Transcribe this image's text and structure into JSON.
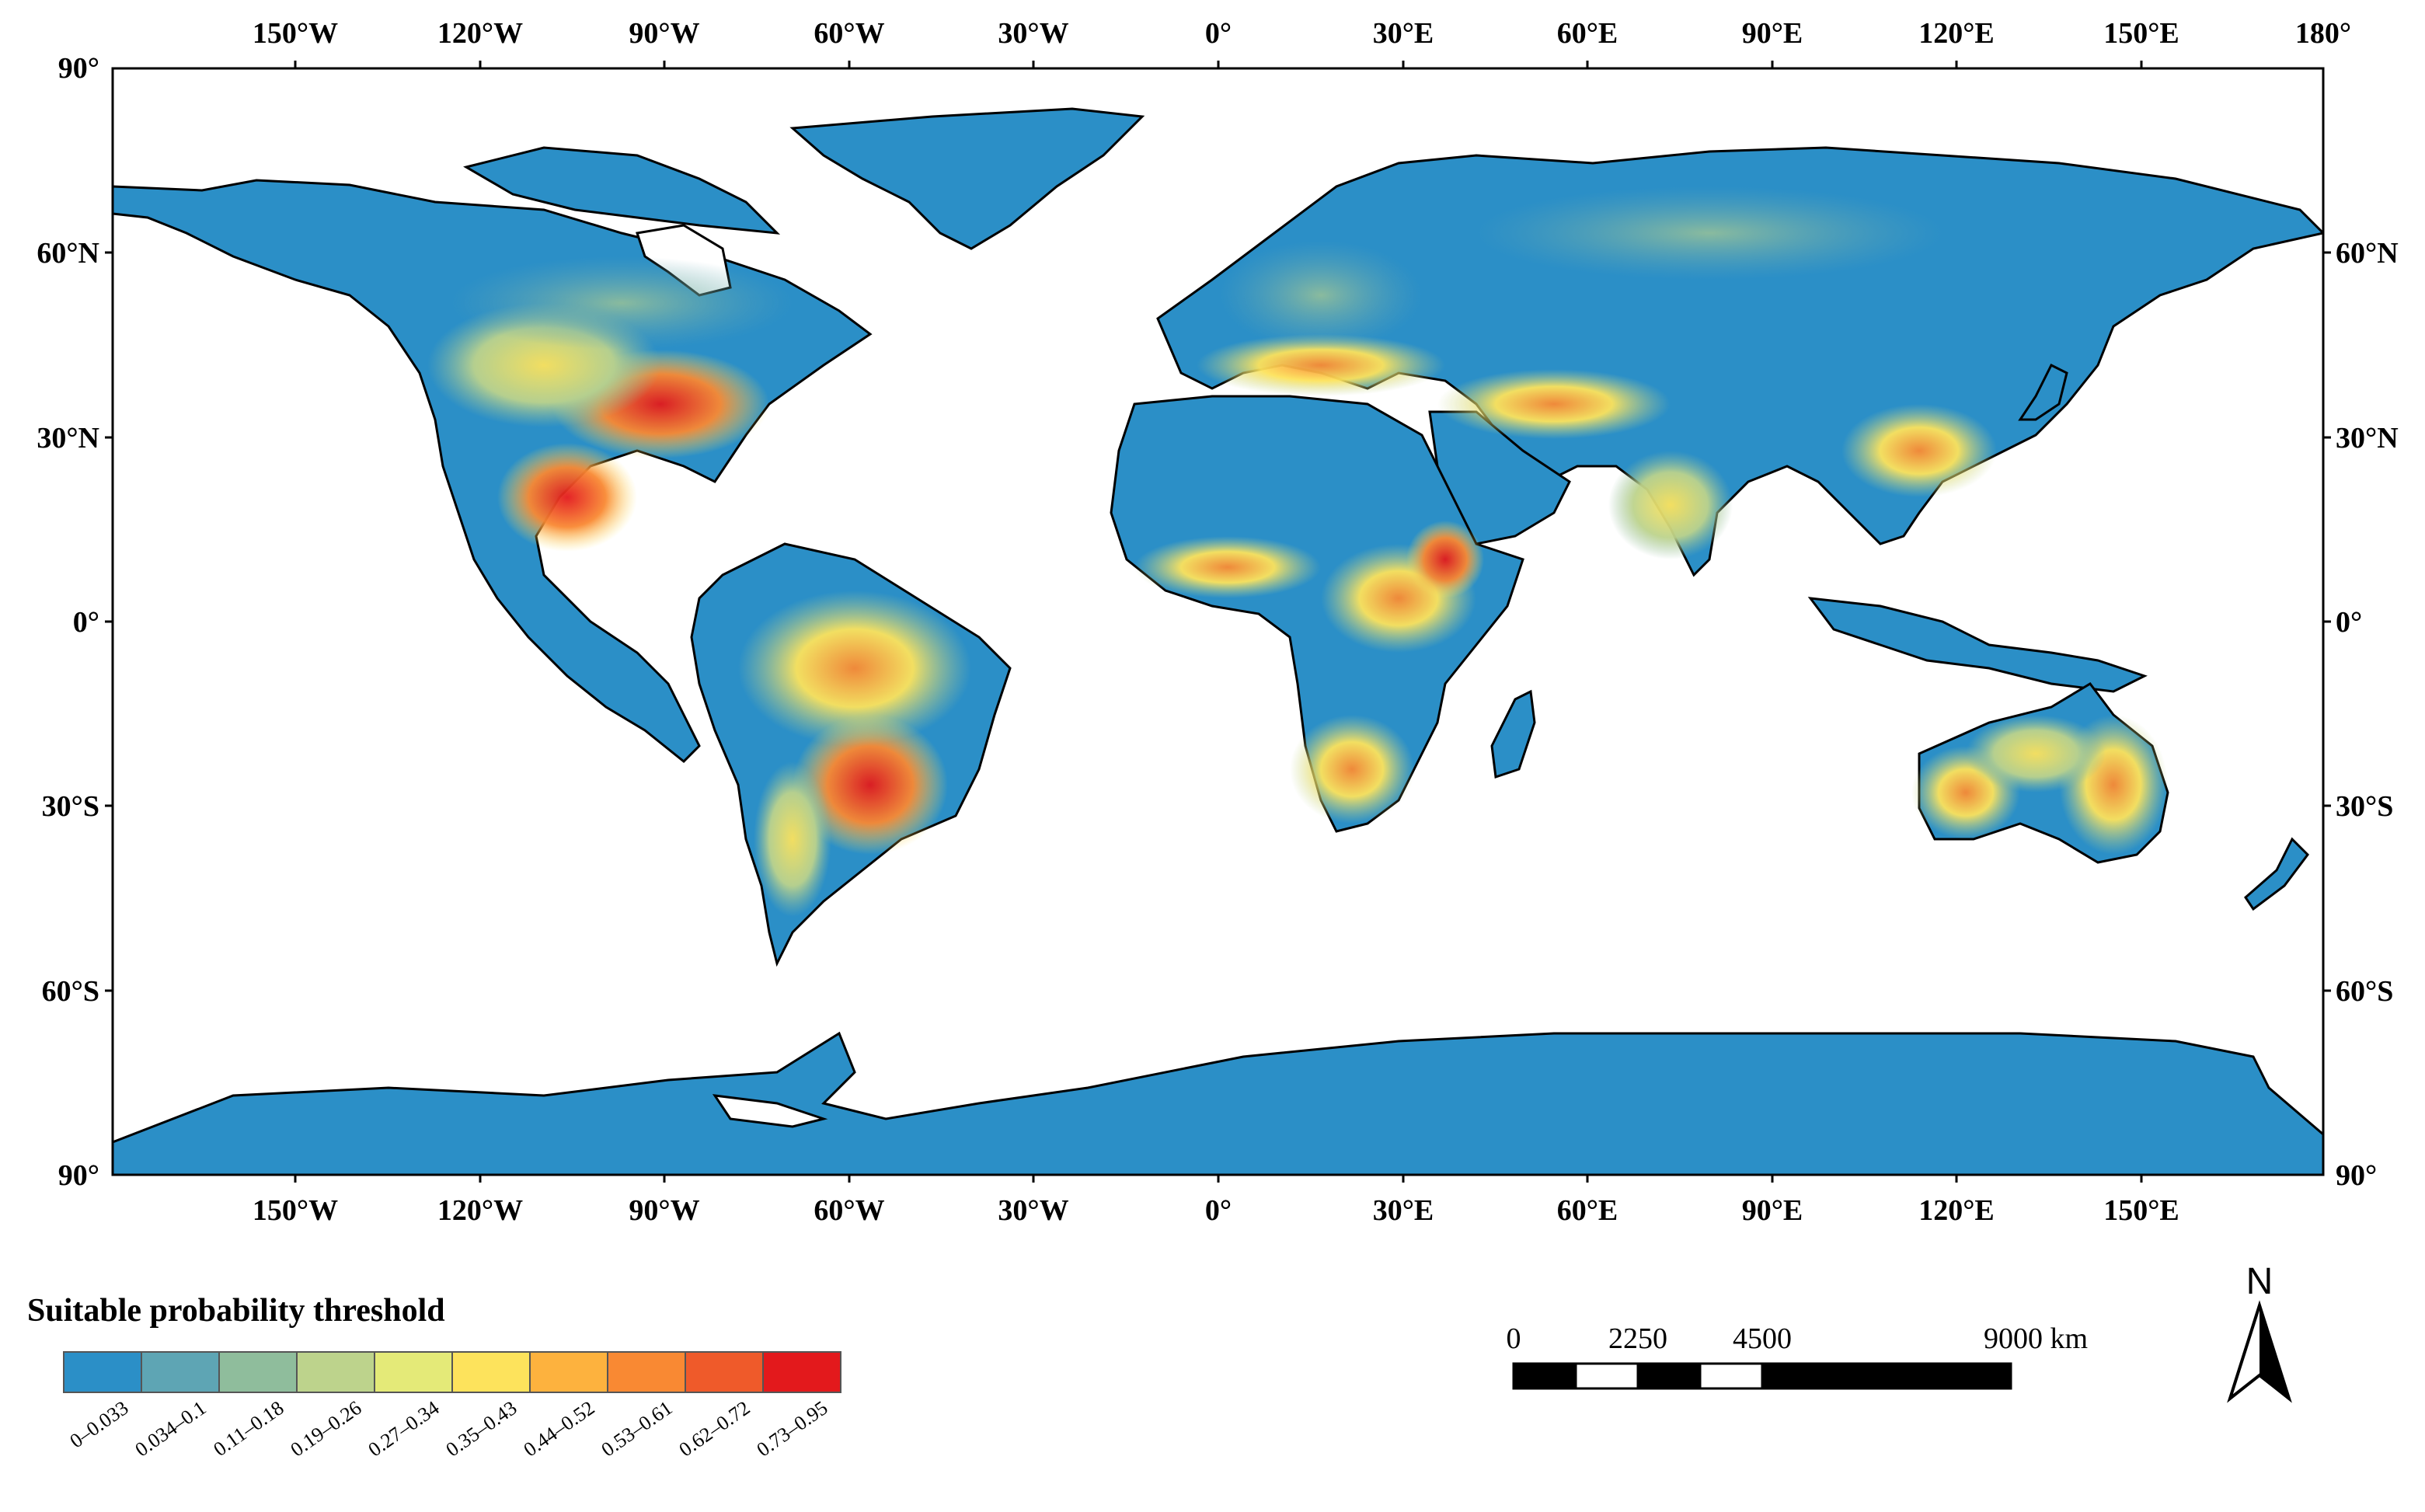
{
  "map": {
    "graticule": {
      "top_longitudes": [
        "150°W",
        "120°W",
        "90°W",
        "60°W",
        "30°W",
        "0°",
        "30°E",
        "60°E",
        "90°E",
        "120°E",
        "150°E",
        "180°"
      ],
      "bottom_longitudes": [
        "150°W",
        "120°W",
        "90°W",
        "60°W",
        "30°W",
        "0°",
        "30°E",
        "60°E",
        "90°E",
        "120°E",
        "150°E"
      ],
      "left_latitudes": [
        "90°",
        "60°N",
        "30°N",
        "0°",
        "30°S",
        "60°S",
        "90°"
      ],
      "right_latitudes": [
        "60°N",
        "30°N",
        "0°",
        "30°S",
        "60°S",
        "90°"
      ]
    },
    "land_color": "#2b8fc7",
    "ocean_color": "#ffffff"
  },
  "legend": {
    "title": "Suitable probability threshold",
    "classes": [
      {
        "label": "0–0.033",
        "color": "#2b8fc7"
      },
      {
        "label": "0.034–0.1",
        "color": "#5ea5b4"
      },
      {
        "label": "0.11–0.18",
        "color": "#8fbd9c"
      },
      {
        "label": "0.19–0.26",
        "color": "#bdd38c"
      },
      {
        "label": "0.27–0.34",
        "color": "#e4ea78"
      },
      {
        "label": "0.35–0.43",
        "color": "#fde35c"
      },
      {
        "label": "0.44–0.52",
        "color": "#fdb23e"
      },
      {
        "label": "0.53–0.61",
        "color": "#f98933"
      },
      {
        "label": "0.62–0.72",
        "color": "#ef5a2a"
      },
      {
        "label": "0.73–0.95",
        "color": "#e3191c"
      }
    ]
  },
  "scale_bar": {
    "labels": [
      "0",
      "2250",
      "4500",
      "9000 km"
    ]
  },
  "north_arrow": {
    "label": "N"
  }
}
